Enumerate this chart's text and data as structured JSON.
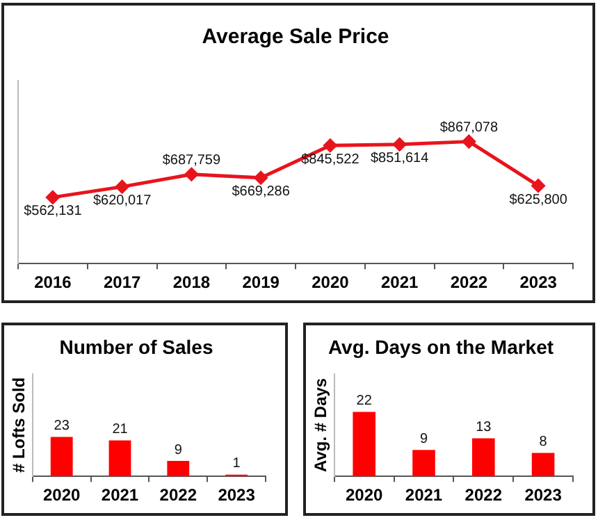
{
  "chart_data": [
    {
      "type": "line",
      "title": "Average Sale Price",
      "categories": [
        "2016",
        "2017",
        "2018",
        "2019",
        "2020",
        "2021",
        "2022",
        "2023"
      ],
      "series": [
        {
          "color": "#e8141c",
          "values": [
            562131,
            620017,
            687759,
            669286,
            845522,
            851614,
            867078,
            625800
          ],
          "value_labels": [
            "$562,131",
            "$620,017",
            "$687,759",
            "$669,286",
            "$845,522",
            "$851,614",
            "$867,078",
            "$625,800"
          ]
        }
      ],
      "ylim": [
        200000,
        1200000
      ],
      "marker": "diamond",
      "grid": false,
      "legend": false,
      "tick_labels": "x"
    },
    {
      "type": "bar",
      "title": "Number of Sales",
      "ylabel": "# Lofts Sold",
      "categories": [
        "2020",
        "2021",
        "2022",
        "2023"
      ],
      "values": [
        23,
        21,
        9,
        1
      ],
      "color": "#ff0000",
      "ylim": [
        0,
        60
      ],
      "data_labels": true,
      "grid": false,
      "legend": false,
      "tick_labels": "x"
    },
    {
      "type": "bar",
      "title": "Avg. Days on the Market",
      "ylabel": "Avg. # Days",
      "categories": [
        "2020",
        "2021",
        "2022",
        "2023"
      ],
      "values": [
        22,
        9,
        13,
        8
      ],
      "color": "#ff0000",
      "ylim": [
        0,
        35
      ],
      "data_labels": true,
      "grid": false,
      "legend": false,
      "tick_labels": "x"
    }
  ]
}
